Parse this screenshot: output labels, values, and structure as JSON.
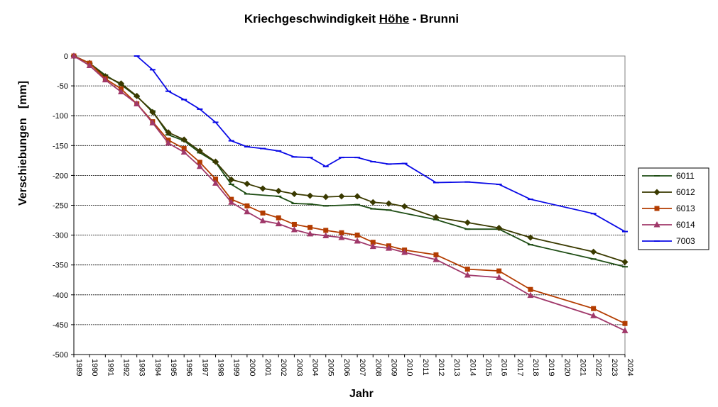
{
  "chart_data": {
    "type": "line",
    "title_parts": [
      "Kriechgeschwindigkeit ",
      "Höhe",
      " - Brunni"
    ],
    "xlabel": "Jahr",
    "ylabel": "Verschiebungen   [mm]",
    "ylim": [
      -500,
      0
    ],
    "yticks": [
      0,
      -50,
      -100,
      -150,
      -200,
      -250,
      -300,
      -350,
      -400,
      -450,
      -500
    ],
    "xlim": [
      1989,
      2024
    ],
    "xticks": [
      1989,
      1990,
      1991,
      1992,
      1993,
      1994,
      1995,
      1996,
      1997,
      1998,
      1999,
      2000,
      2001,
      2002,
      2003,
      2004,
      2005,
      2006,
      2007,
      2008,
      2009,
      2010,
      2011,
      2012,
      2013,
      2014,
      2015,
      2016,
      2017,
      2018,
      2019,
      2020,
      2021,
      2022,
      2023,
      2024
    ],
    "grid": "horizontal",
    "legend_position": "right",
    "series": [
      {
        "name": "6011",
        "color": "#1e4d14",
        "marker": "dash",
        "x": [
          1989,
          1990,
          1991,
          1992,
          1993,
          1994,
          1995,
          1996,
          1997,
          1998,
          1999,
          2000,
          2002,
          2003,
          2004,
          2005,
          2007,
          2008,
          2009,
          2012,
          2014,
          2016,
          2018,
          2022,
          2024
        ],
        "y": [
          0,
          -12,
          -32,
          -48,
          -68,
          -92,
          -132,
          -142,
          -162,
          -178,
          -215,
          -231,
          -235,
          -247,
          -248,
          -251,
          -249,
          -256,
          -258,
          -274,
          -290,
          -290,
          -316,
          -340,
          -353
        ]
      },
      {
        "name": "6012",
        "color": "#3a3a00",
        "marker": "diamond",
        "x": [
          1989,
          1990,
          1991,
          1992,
          1993,
          1994,
          1995,
          1996,
          1997,
          1998,
          1999,
          2000,
          2001,
          2002,
          2003,
          2004,
          2005,
          2006,
          2007,
          2008,
          2009,
          2010,
          2012,
          2014,
          2016,
          2018,
          2022,
          2024
        ],
        "y": [
          0,
          -12,
          -34,
          -46,
          -67,
          -94,
          -128,
          -140,
          -159,
          -177,
          -207,
          -214,
          -222,
          -226,
          -231,
          -234,
          -236,
          -235,
          -235,
          -245,
          -247,
          -252,
          -270,
          -279,
          -288,
          -304,
          -328,
          -345
        ]
      },
      {
        "name": "6013",
        "color": "#b33c00",
        "marker": "square",
        "x": [
          1989,
          1990,
          1991,
          1992,
          1993,
          1994,
          1995,
          1996,
          1997,
          1998,
          1999,
          2000,
          2001,
          2002,
          2003,
          2004,
          2005,
          2006,
          2007,
          2008,
          2009,
          2010,
          2012,
          2014,
          2016,
          2018,
          2022,
          2024
        ],
        "y": [
          0,
          -12,
          -38,
          -55,
          -80,
          -110,
          -141,
          -155,
          -178,
          -206,
          -240,
          -251,
          -263,
          -271,
          -282,
          -287,
          -292,
          -296,
          -300,
          -312,
          -318,
          -325,
          -333,
          -357,
          -360,
          -391,
          -423,
          -448
        ]
      },
      {
        "name": "6014",
        "color": "#a0386a",
        "marker": "triangle",
        "x": [
          1989,
          1990,
          1991,
          1992,
          1993,
          1994,
          1995,
          1996,
          1997,
          1998,
          1999,
          2000,
          2001,
          2002,
          2003,
          2004,
          2005,
          2006,
          2007,
          2008,
          2009,
          2010,
          2012,
          2014,
          2016,
          2018,
          2022,
          2024
        ],
        "y": [
          0,
          -16,
          -40,
          -60,
          -80,
          -112,
          -146,
          -161,
          -185,
          -213,
          -245,
          -261,
          -276,
          -281,
          -291,
          -298,
          -301,
          -304,
          -310,
          -319,
          -322,
          -329,
          -341,
          -367,
          -371,
          -401,
          -435,
          -460
        ]
      },
      {
        "name": "7003",
        "color": "#0a0ae6",
        "marker": "dash",
        "x": [
          1993,
          1994,
          1995,
          1996,
          1997,
          1998,
          1999,
          2000,
          2001,
          2002,
          2003,
          2004,
          2005,
          2006,
          2007,
          2008,
          2009,
          2010,
          2012,
          2014,
          2016,
          2018,
          2022,
          2024
        ],
        "y": [
          0,
          -23,
          -59,
          -73,
          -89,
          -111,
          -142,
          -152,
          -155,
          -159,
          -169,
          -170,
          -185,
          -170,
          -170,
          -177,
          -181,
          -180,
          -212,
          -211,
          -215,
          -240,
          -264,
          -294
        ]
      }
    ]
  }
}
